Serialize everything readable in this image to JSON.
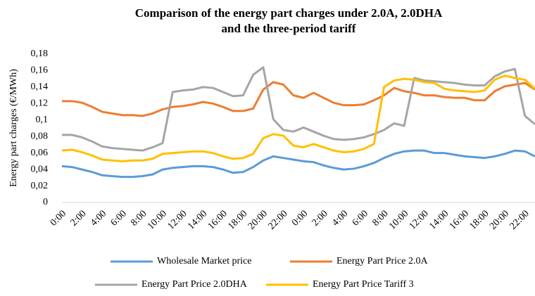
{
  "chart_data": {
    "type": "line",
    "title": "Comparison of the energy part charges under 2.0A, 2.0DHA and the three-period tariff",
    "y_label": "Energy part charges (€/MWh)",
    "categories": [
      "0:00",
      null,
      "2:00",
      null,
      "4:00",
      null,
      "6:00",
      null,
      "8:00",
      null,
      "10:00",
      null,
      "12:00",
      null,
      "14:00",
      null,
      "16:00",
      null,
      "18:00",
      null,
      "20:00",
      null,
      "22:00",
      null,
      "0:00",
      null,
      "2:00",
      null,
      "4:00",
      null,
      "6:00",
      null,
      "8:00",
      null,
      "10:00",
      null,
      "12:00",
      null,
      "14:00",
      null,
      "16:00",
      null,
      "18:00",
      null,
      "20:00",
      null,
      "22:00",
      null
    ],
    "ylim": [
      0,
      0.18
    ],
    "yticks": [
      0,
      {
        "value": 0.02,
        "label": "0,02"
      },
      {
        "value": 0.04,
        "label": "0,04"
      },
      {
        "value": 0.06,
        "label": "0,06"
      },
      {
        "value": 0.08,
        "label": "0,08"
      },
      {
        "value": 0.1,
        "label": "0,1"
      },
      {
        "value": 0.12,
        "label": "0,12"
      },
      {
        "value": 0.14,
        "label": "0,14"
      },
      {
        "value": 0.16,
        "label": "0,16"
      },
      {
        "value": 0.18,
        "label": "0,18"
      }
    ],
    "grid": false,
    "legend": "bottom",
    "series": [
      {
        "name": "Wholesale Market price",
        "color": "#5b9bd5",
        "values": [
          0.044,
          0.043,
          0.04,
          0.037,
          0.033,
          0.032,
          0.031,
          0.031,
          0.032,
          0.034,
          0.04,
          0.042,
          0.043,
          0.044,
          0.044,
          0.043,
          0.04,
          0.036,
          0.037,
          0.043,
          0.051,
          0.056,
          0.054,
          0.052,
          0.05,
          0.049,
          0.045,
          0.042,
          0.04,
          0.041,
          0.044,
          0.048,
          0.054,
          0.059,
          0.062,
          0.063,
          0.063,
          0.06,
          0.06,
          0.058,
          0.056,
          0.055,
          0.054,
          0.056,
          0.059,
          0.063,
          0.062,
          0.056
        ]
      },
      {
        "name": "Energy Part Price 2.0A",
        "color": "#ed7d31",
        "values": [
          0.123,
          0.123,
          0.121,
          0.116,
          0.11,
          0.108,
          0.106,
          0.106,
          0.105,
          0.108,
          0.113,
          0.116,
          0.117,
          0.119,
          0.122,
          0.12,
          0.116,
          0.111,
          0.111,
          0.114,
          0.137,
          0.146,
          0.143,
          0.13,
          0.127,
          0.133,
          0.127,
          0.121,
          0.118,
          0.118,
          0.119,
          0.124,
          0.13,
          0.139,
          0.135,
          0.133,
          0.13,
          0.13,
          0.128,
          0.127,
          0.127,
          0.124,
          0.124,
          0.135,
          0.141,
          0.143,
          0.145,
          0.137
        ]
      },
      {
        "name": "Energy Part Price 2.0DHA",
        "color": "#a5a5a5",
        "values": [
          0.082,
          0.082,
          0.079,
          0.074,
          0.068,
          0.066,
          0.065,
          0.064,
          0.063,
          0.067,
          0.072,
          0.134,
          0.136,
          0.137,
          0.14,
          0.139,
          0.134,
          0.129,
          0.13,
          0.155,
          0.164,
          0.101,
          0.088,
          0.086,
          0.091,
          0.086,
          0.081,
          0.077,
          0.076,
          0.077,
          0.079,
          0.083,
          0.088,
          0.096,
          0.093,
          0.151,
          0.148,
          0.147,
          0.146,
          0.145,
          0.143,
          0.142,
          0.142,
          0.153,
          0.159,
          0.162,
          0.105,
          0.095
        ]
      },
      {
        "name": "Energy Part Price Tariff 3",
        "color": "#ffc000",
        "values": [
          0.063,
          0.064,
          0.061,
          0.057,
          0.052,
          0.051,
          0.05,
          0.051,
          0.051,
          0.053,
          0.059,
          0.06,
          0.061,
          0.062,
          0.062,
          0.06,
          0.056,
          0.053,
          0.054,
          0.059,
          0.078,
          0.083,
          0.081,
          0.069,
          0.067,
          0.071,
          0.067,
          0.063,
          0.061,
          0.062,
          0.065,
          0.071,
          0.14,
          0.148,
          0.15,
          0.149,
          0.146,
          0.145,
          0.138,
          0.136,
          0.135,
          0.134,
          0.136,
          0.149,
          0.154,
          0.151,
          0.149,
          0.138
        ]
      }
    ]
  }
}
